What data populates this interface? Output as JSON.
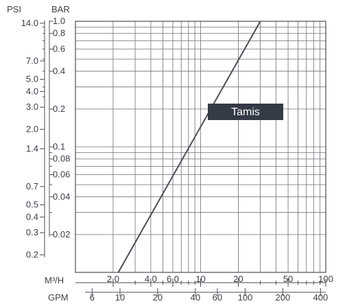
{
  "chart_data": {
    "type": "line",
    "title": "",
    "y_units": {
      "psi": "PSI",
      "bar": "BAR"
    },
    "x_units": {
      "m3h": "M³/H",
      "gpm": "GPM"
    },
    "bar_range": [
      0.01,
      1.0
    ],
    "m3h_range": [
      1,
      100
    ],
    "psi_ticks": [
      {
        "label": "14.0",
        "bar": 0.965
      },
      {
        "label": "7.0",
        "bar": 0.483
      },
      {
        "label": "5.0",
        "bar": 0.345
      },
      {
        "label": "4.0",
        "bar": 0.276
      },
      {
        "label": "3.0",
        "bar": 0.207
      },
      {
        "label": "2.0",
        "bar": 0.138
      },
      {
        "label": "1.4",
        "bar": 0.0965
      },
      {
        "label": "0.7",
        "bar": 0.0483
      },
      {
        "label": "0.5",
        "bar": 0.0345
      },
      {
        "label": "0.4",
        "bar": 0.0276
      },
      {
        "label": "0.3",
        "bar": 0.0207
      },
      {
        "label": "0.2",
        "bar": 0.0138
      }
    ],
    "bar_ticks": [
      {
        "label": "1.0",
        "value": 1.0
      },
      {
        "label": "0.8",
        "value": 0.8
      },
      {
        "label": "0.6",
        "value": 0.6
      },
      {
        "label": "0.4",
        "value": 0.4
      },
      {
        "label": "0.2",
        "value": 0.2
      },
      {
        "label": "0.1",
        "value": 0.1
      },
      {
        "label": "0.08",
        "value": 0.08
      },
      {
        "label": "0.06",
        "value": 0.06
      },
      {
        "label": "0.04",
        "value": 0.04
      },
      {
        "label": "0.02",
        "value": 0.02
      }
    ],
    "m3h_ticks": [
      {
        "label": "2.0",
        "value": 2
      },
      {
        "label": "4.0",
        "value": 4
      },
      {
        "label": "6.0",
        "value": 6
      },
      {
        "label": "10",
        "value": 10
      },
      {
        "label": "20",
        "value": 20
      },
      {
        "label": "50",
        "value": 50
      },
      {
        "label": "100",
        "value": 100
      }
    ],
    "gpm_ticks": [
      {
        "label": "6",
        "value": 1.36
      },
      {
        "label": "10",
        "value": 2.27
      },
      {
        "label": "20",
        "value": 4.54
      },
      {
        "label": "40",
        "value": 9.08
      },
      {
        "label": "60",
        "value": 13.6
      },
      {
        "label": "100",
        "value": 22.7
      },
      {
        "label": "200",
        "value": 45.4
      },
      {
        "label": "400",
        "value": 90.8
      }
    ],
    "series": [
      {
        "name": "Tamis",
        "color": "#4a4e55",
        "points": [
          {
            "m3h": 2.2,
            "bar": 0.01
          },
          {
            "m3h": 30,
            "bar": 1.0
          }
        ]
      }
    ],
    "annotation": {
      "text": "Tamis",
      "bg_color": "#343a46",
      "text_color": "#ffffff"
    },
    "grid": true
  }
}
